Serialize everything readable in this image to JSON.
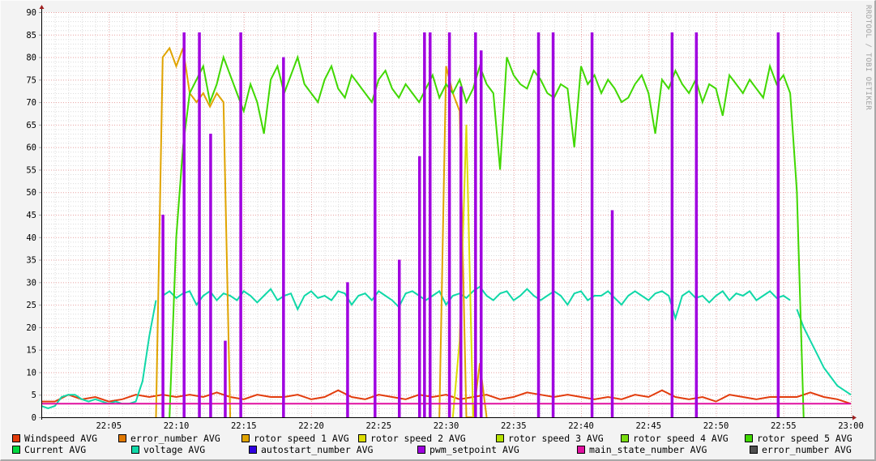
{
  "chart_data": {
    "type": "line",
    "title": "",
    "xlabel": "",
    "ylabel": "",
    "ylim": [
      0,
      90
    ],
    "xlim": [
      "22:00:00",
      "23:00:00"
    ],
    "y_ticks": [
      "0",
      "5",
      "10",
      "15",
      "20",
      "25",
      "30",
      "35",
      "40",
      "45",
      "50",
      "55",
      "60",
      "65",
      "70",
      "75",
      "80",
      "85",
      "90"
    ],
    "x_ticks": [
      "22:05",
      "22:10",
      "22:15",
      "22:20",
      "22:25",
      "22:30",
      "22:35",
      "22:40",
      "22:45",
      "22:50",
      "22:55",
      "23:00"
    ],
    "grid": true,
    "legend_placement": "bottom",
    "watermark": "RRDTOOL / TOBI OETIKER",
    "series": [
      {
        "name": "Windspeed AVG",
        "color": "#e23c0c",
        "segments": [
          {
            "start": "22:00:00",
            "interval_s": 60,
            "values": [
              3.5,
              3.5,
              5,
              4,
              4.5,
              3.5,
              4,
              5,
              4.5,
              5,
              4.5,
              5,
              4.5,
              5.5,
              4.5,
              4,
              5,
              4.5,
              4.5,
              5,
              4,
              4.5,
              6,
              4.5,
              4,
              5,
              4.5,
              4,
              5,
              4.5,
              5,
              4,
              4.5,
              5,
              4,
              4.5,
              5.5,
              5,
              4.5,
              5,
              4.5,
              4,
              4.5,
              4,
              5,
              4.5,
              6,
              4.5,
              4,
              4.5,
              3.5,
              5,
              4.5,
              4,
              4.5,
              4.5,
              4.5,
              5.5,
              4.5,
              4,
              3
            ]
          }
        ]
      },
      {
        "name": "error_number AVG",
        "color": "#e07800",
        "segments": []
      },
      {
        "name": "rotor speed 1 AVG",
        "color": "#e0a400",
        "segments": [
          {
            "start": "22:08:30",
            "interval_s": 30,
            "values": [
              0,
              80,
              82,
              78,
              82,
              72,
              70,
              72,
              69,
              72,
              70,
              0
            ]
          },
          {
            "start": "22:29:30",
            "interval_s": 30,
            "values": [
              0,
              78,
              72,
              68,
              0,
              0,
              12,
              0
            ]
          }
        ]
      },
      {
        "name": "rotor speed 2 AVG",
        "color": "#dcdc00",
        "segments": [
          {
            "start": "22:30:30",
            "interval_s": 30,
            "values": [
              0,
              17,
              65,
              0
            ]
          }
        ]
      },
      {
        "name": "rotor speed 3 AVG",
        "color": "#b4e000",
        "segments": []
      },
      {
        "name": "rotor speed 4 AVG",
        "color": "#78dc10",
        "segments": []
      },
      {
        "name": "rotor speed 5 AVG",
        "color": "#40d800",
        "segments": [
          {
            "start": "22:09:30",
            "interval_s": 30,
            "values": [
              0,
              40,
              60,
              72,
              75,
              78,
              70,
              74,
              80,
              76,
              72,
              68,
              74,
              70,
              63,
              75,
              78,
              72,
              76,
              80,
              74,
              72,
              70,
              75,
              78,
              73,
              71,
              76,
              74,
              72,
              70,
              75,
              77,
              73,
              71,
              74,
              72,
              70,
              73,
              76,
              71,
              74,
              72,
              75,
              70,
              73,
              78,
              74,
              72,
              55,
              80,
              76,
              74,
              73,
              77,
              75,
              72,
              71,
              74,
              73,
              60,
              78,
              74,
              76,
              72,
              75,
              73,
              70,
              71,
              74,
              76,
              72,
              63,
              75,
              73,
              77,
              74,
              72,
              75,
              70,
              74,
              73,
              67,
              76,
              74,
              72,
              75,
              73,
              71,
              78,
              74,
              76,
              72,
              50,
              0
            ]
          }
        ]
      },
      {
        "name": "Current AVG",
        "color": "#00d840",
        "segments": []
      },
      {
        "name": "voltage AVG",
        "color": "#10d8a8",
        "segments": [
          {
            "start": "22:00:00",
            "interval_s": 30,
            "values": [
              2.5,
              2,
              2.5,
              4.5,
              5,
              5,
              4,
              3.5,
              4,
              3.5,
              3,
              3.5,
              3,
              3,
              3.5,
              8,
              18,
              26
            ]
          },
          {
            "start": "22:09:00",
            "interval_s": 30,
            "values": [
              27,
              28,
              26.5,
              27.5,
              28,
              25,
              27,
              28,
              26,
              27.5,
              27,
              26,
              28,
              27,
              25.5,
              27,
              28.5,
              26,
              27,
              27.5,
              24,
              27,
              28,
              26.5,
              27,
              26,
              28,
              27.5,
              25,
              27,
              27.5,
              26,
              28,
              27,
              26,
              24.5,
              27.5,
              28,
              27,
              26,
              27,
              28,
              25,
              27,
              27.5,
              26.5,
              28,
              29,
              27,
              26,
              27.5,
              28,
              26,
              27,
              28.5,
              27,
              26,
              27,
              28,
              27,
              25,
              27.5,
              28,
              26,
              27,
              27,
              28,
              26.5,
              25,
              27,
              28,
              27,
              26,
              27.5,
              28,
              27,
              22,
              27,
              28,
              26.5,
              27,
              25.5,
              27,
              28,
              26,
              27.5,
              27,
              28,
              26,
              27,
              28,
              26.5,
              27,
              26
            ]
          },
          {
            "start": "22:56:00",
            "interval_s": 30,
            "values": [
              24,
              20,
              17,
              14,
              11,
              9,
              7,
              6,
              5
            ]
          }
        ]
      },
      {
        "name": "autostart_number AVG",
        "color": "#3000e0",
        "segments": []
      },
      {
        "name": "pwm_setpoint AVG",
        "color": "#a000e0",
        "spikes": [
          [
            "22:09:00",
            45
          ],
          [
            "22:10:34",
            85.5
          ],
          [
            "22:11:42",
            85.5
          ],
          [
            "22:12:32",
            63
          ],
          [
            "22:13:37",
            17
          ],
          [
            "22:14:46",
            85.5
          ],
          [
            "22:17:56",
            80
          ],
          [
            "22:22:41",
            30
          ],
          [
            "22:24:43",
            85.5
          ],
          [
            "22:26:31",
            35
          ],
          [
            "22:28:01",
            58
          ],
          [
            "22:28:23",
            85.5
          ],
          [
            "22:28:48",
            85.5
          ],
          [
            "22:30:14",
            85.5
          ],
          [
            "22:31:05",
            73.5
          ],
          [
            "22:32:10",
            85.5
          ],
          [
            "22:32:35",
            81.5
          ],
          [
            "22:36:50",
            85.5
          ],
          [
            "22:37:55",
            85.5
          ],
          [
            "22:40:48",
            85.5
          ],
          [
            "22:42:18",
            46
          ],
          [
            "22:46:44",
            85.5
          ],
          [
            "22:48:32",
            85.5
          ],
          [
            "22:54:36",
            85.5
          ]
        ]
      },
      {
        "name": "main_state_number AVG",
        "color": "#e010a0",
        "segments": [
          {
            "start": "22:00:00",
            "interval_s": 3600,
            "values": [
              3,
              3
            ]
          }
        ]
      },
      {
        "name": "error_number AVG",
        "color": "#505050",
        "segments": []
      }
    ]
  }
}
